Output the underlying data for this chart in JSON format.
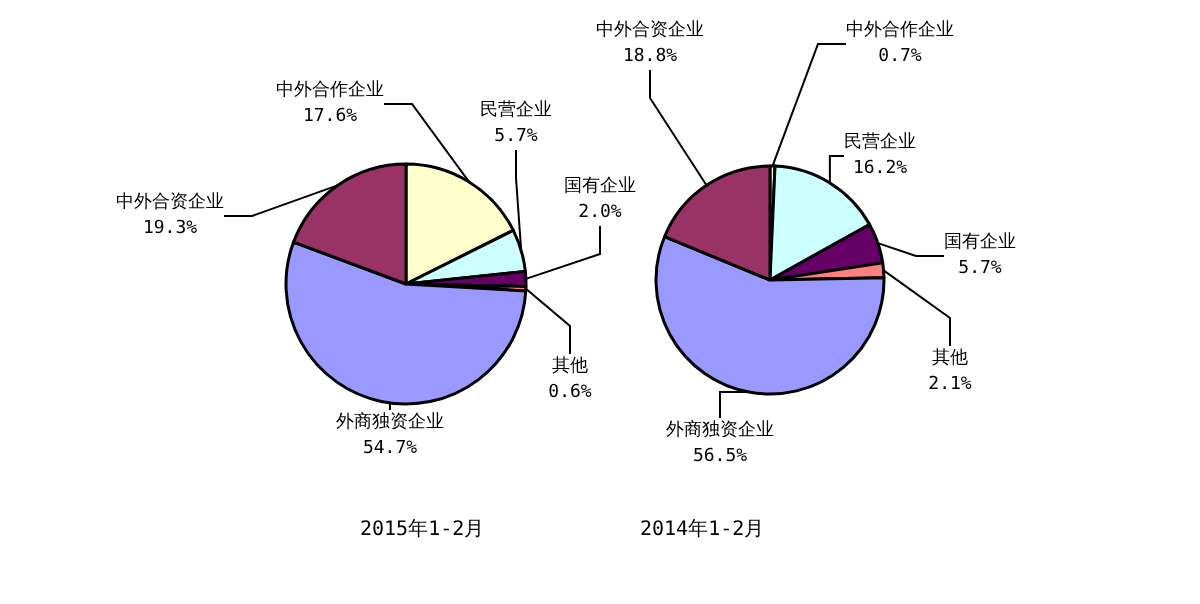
{
  "chart_data": [
    {
      "type": "pie",
      "title": "2015年1-2月",
      "categories": [
        "中外合作企业",
        "民营企业",
        "国有企业",
        "其他",
        "外商独资企业",
        "中外合资企业"
      ],
      "values": [
        17.6,
        5.7,
        2.0,
        0.6,
        54.7,
        19.3
      ],
      "value_labels": [
        "17.6%",
        "5.7%",
        "2.0%",
        "0.6%",
        "54.7%",
        "19.3%"
      ],
      "colors": [
        "#ffffcc",
        "#ccffff",
        "#660066",
        "#ff8080",
        "#9999ff",
        "#993366"
      ],
      "legend": false
    },
    {
      "type": "pie",
      "title": "2014年1-2月",
      "categories": [
        "中外合作企业",
        "民营企业",
        "国有企业",
        "其他",
        "外商独资企业",
        "中外合资企业"
      ],
      "values": [
        0.7,
        16.2,
        5.7,
        2.1,
        56.5,
        18.8
      ],
      "value_labels": [
        "0.7%",
        "16.2%",
        "5.7%",
        "2.1%",
        "56.5%",
        "18.8%"
      ],
      "colors": [
        "#ffffcc",
        "#ccffff",
        "#660066",
        "#ff8080",
        "#9999ff",
        "#993366"
      ],
      "legend": false
    }
  ]
}
